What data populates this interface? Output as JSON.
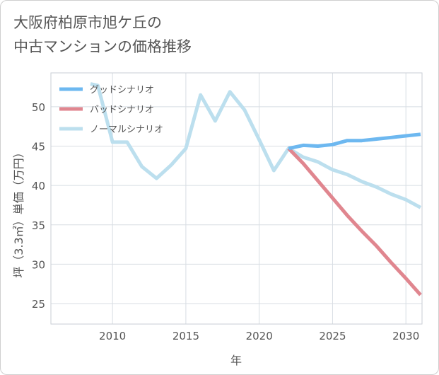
{
  "title": {
    "line1": "大阪府柏原市旭ケ丘の",
    "line2": "中古マンションの価格推移"
  },
  "colors": {
    "good": "#6db8f0",
    "bad": "#e0868f",
    "normal": "#bcdfee",
    "grid": "#d8dde3",
    "axis_text": "#555555"
  },
  "chart_data": {
    "type": "line",
    "title": "大阪府柏原市旭ケ丘の中古マンションの価格推移",
    "xlabel": "年",
    "ylabel": "坪（3.3㎡）単価（万円）",
    "xlim": [
      2005.8,
      2031.1
    ],
    "ylim": [
      22.4,
      54.3
    ],
    "x_ticks": [
      2010,
      2015,
      2020,
      2025,
      2030
    ],
    "y_ticks": [
      25,
      30,
      35,
      40,
      45,
      50
    ],
    "grid": true,
    "legend_position": "top-left",
    "series": [
      {
        "name": "グッドシナリオ",
        "color_key": "good",
        "x": [
          2022,
          2023,
          2024,
          2025,
          2026,
          2027,
          2028,
          2029,
          2030,
          2031
        ],
        "y": [
          44.7,
          45.1,
          45.0,
          45.2,
          45.7,
          45.7,
          45.9,
          46.1,
          46.3,
          46.5
        ]
      },
      {
        "name": "バッドシナリオ",
        "color_key": "bad",
        "x": [
          2022,
          2023,
          2024,
          2025,
          2026,
          2027,
          2028,
          2029,
          2030,
          2031
        ],
        "y": [
          44.7,
          42.8,
          40.6,
          38.4,
          36.2,
          34.2,
          32.3,
          30.2,
          28.2,
          26.1
        ]
      },
      {
        "name": "ノーマルシナリオ",
        "color_key": "normal",
        "x": [
          2008.5,
          2009,
          2010,
          2011,
          2012,
          2013,
          2014,
          2015,
          2016,
          2017,
          2018,
          2019,
          2020,
          2021,
          2022,
          2023,
          2024,
          2025,
          2026,
          2027,
          2028,
          2029,
          2030,
          2031
        ],
        "y": [
          52.9,
          52.7,
          45.5,
          45.5,
          42.4,
          40.9,
          42.6,
          44.7,
          51.5,
          48.2,
          51.9,
          49.6,
          45.8,
          41.9,
          44.7,
          43.6,
          43.0,
          42.0,
          41.4,
          40.5,
          39.8,
          38.9,
          38.2,
          37.2
        ]
      }
    ]
  }
}
